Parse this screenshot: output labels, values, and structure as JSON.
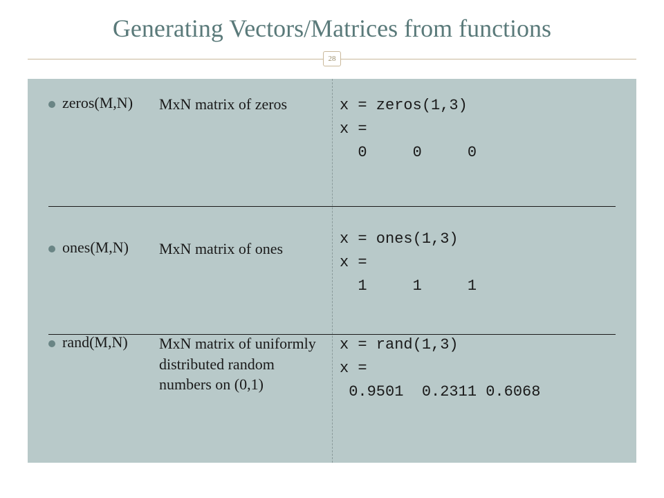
{
  "title": "Generating Vectors/Matrices from functions",
  "page_number": "28",
  "colors": {
    "title_color": "#5a7a7a",
    "divider_color": "#c9b89a",
    "content_bg": "#b8c9c9",
    "bullet_color": "#6a8585",
    "text_color": "#1a1a1a",
    "vsep_color": "#8a9a9a"
  },
  "functions": [
    {
      "name": "zeros(M,N)",
      "desc": "MxN matrix of zeros",
      "code": {
        "cmd": "x = zeros(1,3)",
        "resp": "x =",
        "vals": "  0     0     0"
      }
    },
    {
      "name": "ones(M,N)",
      "desc": "MxN matrix of ones",
      "code": {
        "cmd": "x = ones(1,3)",
        "resp": "x =",
        "vals": "  1     1     1"
      }
    },
    {
      "name": "rand(M,N)",
      "desc": "MxN matrix of uniformly distributed random numbers on (0,1)",
      "code": {
        "cmd": "x = rand(1,3)",
        "resp": "x =",
        "vals": " 0.9501  0.2311 0.6068"
      }
    }
  ]
}
